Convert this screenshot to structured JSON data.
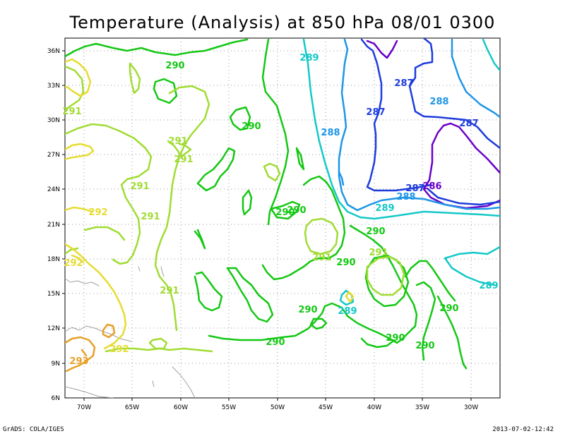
{
  "title": "Temperature (Analysis) at 850 hPa 08/01 0300",
  "footer_left": "GrADS: COLA/IGES",
  "footer_right": "2013-07-02-12:42",
  "axes": {
    "lat_ticks": [
      "36N",
      "33N",
      "30N",
      "27N",
      "24N",
      "21N",
      "18N",
      "15N",
      "12N",
      "9N",
      "6N"
    ],
    "lon_ticks": [
      "70W",
      "65W",
      "60W",
      "55W",
      "50W",
      "45W",
      "40W",
      "35W",
      "30W"
    ]
  },
  "contour_colors": {
    "286": "#6a00c8",
    "287": "#1e3cdc",
    "288": "#1e96e6",
    "289": "#14c8c8",
    "290": "#14c814",
    "291": "#a0dc32",
    "292": "#e6dc32",
    "293": "#e6a028"
  },
  "labels": [
    {
      "text": "290",
      "level": "290"
    },
    {
      "text": "289",
      "level": "289"
    },
    {
      "text": "287",
      "level": "287"
    },
    {
      "text": "288",
      "level": "288"
    },
    {
      "text": "287",
      "level": "287"
    },
    {
      "text": "287",
      "level": "287"
    },
    {
      "text": "291",
      "level": "291"
    },
    {
      "text": "290",
      "level": "290"
    },
    {
      "text": "288",
      "level": "288"
    },
    {
      "text": "291",
      "level": "291"
    },
    {
      "text": "291",
      "level": "291"
    },
    {
      "text": "291",
      "level": "291"
    },
    {
      "text": "287",
      "level": "287"
    },
    {
      "text": "286",
      "level": "286"
    },
    {
      "text": "288",
      "level": "288"
    },
    {
      "text": "292",
      "level": "292"
    },
    {
      "text": "291",
      "level": "291"
    },
    {
      "text": "290",
      "level": "290"
    },
    {
      "text": "290",
      "level": "290"
    },
    {
      "text": "289",
      "level": "289"
    },
    {
      "text": "290",
      "level": "290"
    },
    {
      "text": "292",
      "level": "292"
    },
    {
      "text": "291",
      "level": "291"
    },
    {
      "text": "290",
      "level": "290"
    },
    {
      "text": "291",
      "level": "291"
    },
    {
      "text": "289",
      "level": "289"
    },
    {
      "text": "291",
      "level": "291"
    },
    {
      "text": "290",
      "level": "290"
    },
    {
      "text": "289",
      "level": "289"
    },
    {
      "text": "290",
      "level": "290"
    },
    {
      "text": "290",
      "level": "290"
    },
    {
      "text": "290",
      "level": "290"
    },
    {
      "text": "292",
      "level": "292"
    },
    {
      "text": "293",
      "level": "293"
    },
    {
      "text": "290",
      "level": "290"
    },
    {
      "text": "290",
      "level": "290"
    }
  ]
}
